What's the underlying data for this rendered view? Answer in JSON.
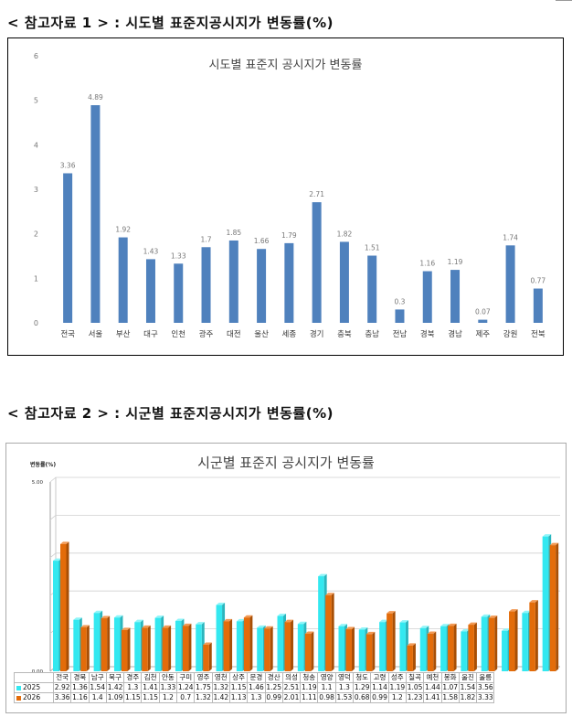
{
  "page": {
    "heading1": "< 참고자료 1 > : 시도별 표준지공시지가 변동률(%)",
    "heading2": "< 참고자료 2 > : 시군별 표준지공시지가 변동률(%)"
  },
  "chart_data": [
    {
      "type": "bar",
      "title": "시도별 표준지 공시지가 변동률",
      "xlabel": "",
      "ylabel": "",
      "ylim": [
        0,
        6
      ],
      "yticks": [
        "0",
        "1",
        "2",
        "3",
        "4",
        "5",
        "6"
      ],
      "grid": false,
      "categories": [
        "전국",
        "서울",
        "부산",
        "대구",
        "인천",
        "광주",
        "대전",
        "울산",
        "세종",
        "경기",
        "충북",
        "충남",
        "전남",
        "경북",
        "경남",
        "제주",
        "강원",
        "전북"
      ],
      "values": [
        3.36,
        4.89,
        1.92,
        1.43,
        1.33,
        1.7,
        1.85,
        1.66,
        1.79,
        2.71,
        1.82,
        1.51,
        0.3,
        1.16,
        1.19,
        0.07,
        1.74,
        0.77
      ],
      "value_labels": [
        "3.36",
        "4.89",
        "1.92",
        "1.43",
        "1.33",
        "1.7",
        "1.85",
        "1.66",
        "1.79",
        "2.71",
        "1.82",
        "1.51",
        "0.3",
        "1.16",
        "1.19",
        "0.07",
        "1.74",
        "0.77"
      ],
      "colors": {
        "bar": "#4f81bd"
      }
    },
    {
      "type": "bar",
      "title": "시군별 표준지 공시지가 변동률",
      "ylabel": "변동률(%)",
      "xlabel": "",
      "ylim": [
        0,
        5
      ],
      "yticks": [
        "0.00",
        "5.00"
      ],
      "grid": true,
      "legend": "data table",
      "categories": [
        "전국",
        "경북",
        "남구",
        "북구",
        "경주",
        "김천",
        "안동",
        "구미",
        "영주",
        "영천",
        "상주",
        "문경",
        "경산",
        "의성",
        "청송",
        "영양",
        "영덕",
        "청도",
        "고령",
        "성주",
        "칠곡",
        "예천",
        "봉화",
        "울진",
        "울릉"
      ],
      "series": [
        {
          "name": "2025",
          "color": "#33e8f0",
          "values": [
            2.92,
            1.36,
            1.54,
            1.42,
            1.3,
            1.41,
            1.33,
            1.24,
            1.75,
            1.32,
            1.15,
            1.46,
            1.25,
            2.51,
            1.19,
            1.1,
            1.3,
            1.29,
            1.14,
            1.19,
            1.05,
            1.44,
            1.07,
            1.54,
            3.56
          ],
          "labels": [
            "2.92",
            "1.36",
            "1.54",
            "1.42",
            "1.3",
            "1.41",
            "1.33",
            "1.24",
            "1.75",
            "1.32",
            "1.15",
            "1.46",
            "1.25",
            "2.51",
            "1.19",
            "1.1",
            "1.3",
            "1.29",
            "1.14",
            "1.19",
            "1.05",
            "1.44",
            "1.07",
            "1.54",
            "3.56"
          ]
        },
        {
          "name": "2026",
          "color": "#e36c0a",
          "values": [
            3.36,
            1.16,
            1.4,
            1.09,
            1.15,
            1.15,
            1.2,
            0.7,
            1.32,
            1.42,
            1.13,
            1.3,
            0.99,
            2.01,
            1.11,
            0.98,
            1.53,
            0.68,
            0.99,
            1.2,
            1.23,
            1.41,
            1.58,
            1.82,
            3.33
          ],
          "labels": [
            "3.36",
            "1.16",
            "1.4",
            "1.09",
            "1.15",
            "1.15",
            "1.2",
            "0.7",
            "1.32",
            "1.42",
            "1.13",
            "1.3",
            "0.99",
            "2.01",
            "1.11",
            "0.98",
            "1.53",
            "0.68",
            "0.99",
            "1.2",
            "1.23",
            "1.41",
            "1.58",
            "1.82",
            "3.33"
          ]
        }
      ]
    }
  ]
}
